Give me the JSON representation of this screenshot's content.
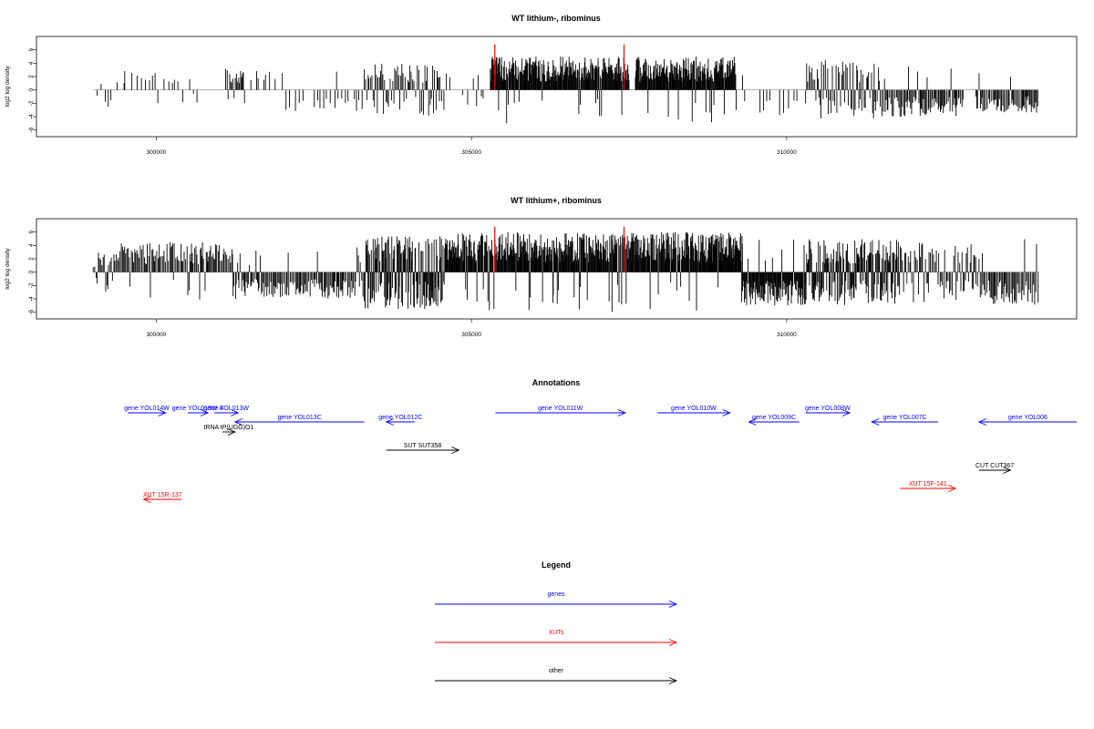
{
  "chart_data": [
    {
      "type": "bar",
      "title": "WT lithium-, ribominus",
      "ylabel": "log2 log density",
      "ylim": [
        -7,
        8
      ],
      "xlim": [
        298100,
        314600
      ],
      "x_ticks": [
        "300000",
        "305000",
        "310000"
      ],
      "y_ticks": [
        "-6",
        "-4",
        "-2",
        "0",
        "2",
        "4",
        "6"
      ],
      "baseline": 0,
      "marker_positions": [
        305370,
        307420
      ],
      "marker_color": "#ff0000",
      "segments": [
        {
          "from": 299000,
          "to": 299500,
          "sign": "mixed",
          "amp": 3.0,
          "density": "sparse"
        },
        {
          "from": 299500,
          "to": 300200,
          "sign": "pos",
          "amp": 4.0,
          "density": "sparse"
        },
        {
          "from": 300200,
          "to": 300700,
          "sign": "mixed",
          "amp": 2.0,
          "density": "sparse"
        },
        {
          "from": 301100,
          "to": 301400,
          "sign": "pos",
          "amp": 3.2,
          "density": "medium"
        },
        {
          "from": 301400,
          "to": 301900,
          "sign": "mixed",
          "amp": 3.0,
          "density": "sparse"
        },
        {
          "from": 302000,
          "to": 303300,
          "sign": "neg",
          "amp": 3.5,
          "density": "sparse"
        },
        {
          "from": 303300,
          "to": 304500,
          "sign": "mixed",
          "amp": 4.0,
          "density": "medium"
        },
        {
          "from": 304500,
          "to": 305300,
          "sign": "mixed",
          "amp": 3.0,
          "density": "sparse"
        },
        {
          "from": 305300,
          "to": 307500,
          "sign": "pos",
          "amp": 5.0,
          "density": "dense"
        },
        {
          "from": 307600,
          "to": 309200,
          "sign": "pos",
          "amp": 5.0,
          "density": "dense"
        },
        {
          "from": 309300,
          "to": 310200,
          "sign": "neg",
          "amp": 3.8,
          "density": "sparse"
        },
        {
          "from": 310300,
          "to": 311400,
          "sign": "mixed",
          "amp": 4.5,
          "density": "medium"
        },
        {
          "from": 311400,
          "to": 312800,
          "sign": "neg",
          "amp": 4.0,
          "density": "medium"
        },
        {
          "from": 313000,
          "to": 314000,
          "sign": "neg",
          "amp": 3.5,
          "density": "medium"
        }
      ]
    },
    {
      "type": "bar",
      "title": "WT lithium+, ribominus",
      "ylabel": "log2 log density",
      "ylim": [
        -7,
        8
      ],
      "xlim": [
        298100,
        314600
      ],
      "x_ticks": [
        "300000",
        "305000",
        "310000"
      ],
      "y_ticks": [
        "-6",
        "-4",
        "-2",
        "0",
        "2",
        "4",
        "6"
      ],
      "baseline": 0,
      "marker_positions": [
        305370,
        307420
      ],
      "marker_color": "#ff0000",
      "segments": [
        {
          "from": 299000,
          "to": 299400,
          "sign": "mixed",
          "amp": 3.0,
          "density": "medium"
        },
        {
          "from": 299400,
          "to": 301300,
          "sign": "pos",
          "amp": 4.5,
          "density": "medium"
        },
        {
          "from": 301300,
          "to": 303300,
          "sign": "neg",
          "amp": 4.0,
          "density": "medium"
        },
        {
          "from": 303300,
          "to": 304600,
          "sign": "mixed",
          "amp": 5.5,
          "density": "dense"
        },
        {
          "from": 304600,
          "to": 309300,
          "sign": "pos",
          "amp": 6.0,
          "density": "dense"
        },
        {
          "from": 309300,
          "to": 310300,
          "sign": "neg",
          "amp": 5.0,
          "density": "dense"
        },
        {
          "from": 310300,
          "to": 311800,
          "sign": "mixed",
          "amp": 5.0,
          "density": "dense"
        },
        {
          "from": 311800,
          "to": 313000,
          "sign": "mixed",
          "amp": 4.5,
          "density": "medium"
        },
        {
          "from": 313000,
          "to": 314000,
          "sign": "neg",
          "amp": 5.0,
          "density": "medium"
        }
      ]
    }
  ],
  "annotations": {
    "title": "Annotations",
    "items": [
      {
        "label": "gene YOL014W",
        "from": 299550,
        "to": 300150,
        "dir": "right",
        "row": 0,
        "color": "#0000ff"
      },
      {
        "label": "gene YOL013W-A",
        "from": 300500,
        "to": 300820,
        "dir": "right",
        "row": 0,
        "color": "#0000ff"
      },
      {
        "label": "gene YOL013W",
        "from": 300920,
        "to": 301300,
        "dir": "right",
        "row": 0,
        "color": "#0000ff"
      },
      {
        "label": "gene YOL013C",
        "from": 301250,
        "to": 303300,
        "dir": "left",
        "row": 1,
        "color": "#0000ff"
      },
      {
        "label": "gene YOL012C",
        "from": 303650,
        "to": 304100,
        "dir": "left",
        "row": 1,
        "color": "#0000ff"
      },
      {
        "label": "gene YOL011W",
        "from": 305380,
        "to": 307440,
        "dir": "right",
        "row": 0,
        "color": "#0000ff"
      },
      {
        "label": "gene YOL010W",
        "from": 307950,
        "to": 309100,
        "dir": "right",
        "row": 0,
        "color": "#0000ff"
      },
      {
        "label": "gene YOL009C",
        "from": 309400,
        "to": 310200,
        "dir": "left",
        "row": 1,
        "color": "#0000ff"
      },
      {
        "label": "gene YOL008W",
        "from": 310300,
        "to": 311000,
        "dir": "right",
        "row": 0,
        "color": "#0000ff"
      },
      {
        "label": "gene YOL007C",
        "from": 311350,
        "to": 312400,
        "dir": "left",
        "row": 1,
        "color": "#0000ff"
      },
      {
        "label": "gene YOL006",
        "from": 313050,
        "to": 314600,
        "dir": "left",
        "row": 1,
        "color": "#0000ff"
      },
      {
        "label": "tRNA tP(UGG)O1",
        "from": 301050,
        "to": 301250,
        "dir": "right",
        "row": 2,
        "color": "#000000"
      },
      {
        "label": "SUT SUT358",
        "from": 303650,
        "to": 304800,
        "dir": "right",
        "row": 3,
        "color": "#000000"
      },
      {
        "label": "CUT CUT367",
        "from": 313050,
        "to": 313550,
        "dir": "right",
        "row": 4,
        "color": "#000000"
      },
      {
        "label": "XUT 15F-141",
        "from": 311800,
        "to": 312680,
        "dir": "right",
        "row": 5,
        "color": "#ff0000"
      },
      {
        "label": "XUT 15R-137",
        "from": 299800,
        "to": 300400,
        "dir": "left",
        "row": 6,
        "color": "#ff0000"
      }
    ]
  },
  "legend": {
    "title": "Legend",
    "items": [
      {
        "label": "genes",
        "color": "#0000ff"
      },
      {
        "label": "XUTs",
        "color": "#ff0000"
      },
      {
        "label": "other",
        "color": "#000000"
      }
    ]
  }
}
